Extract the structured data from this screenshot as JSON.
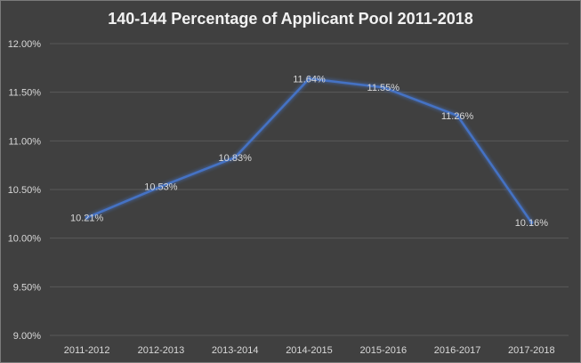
{
  "chart_data": {
    "type": "line",
    "title": "140-144 Percentage of Applicant Pool 2011-2018",
    "categories": [
      "2011-2012",
      "2012-2013",
      "2013-2014",
      "2014-2015",
      "2015-2016",
      "2016-2017",
      "2017-2018"
    ],
    "series": [
      {
        "values": [
          10.21,
          10.53,
          10.83,
          11.64,
          11.55,
          11.26,
          10.16
        ],
        "labels": [
          "10.21%",
          "10.53%",
          "10.83%",
          "11.64%",
          "11.55%",
          "11.26%",
          "10.16%"
        ]
      }
    ],
    "ylim": [
      9.0,
      12.0
    ],
    "yticks": [
      9.0,
      9.5,
      10.0,
      10.5,
      11.0,
      11.5,
      12.0
    ],
    "ytick_labels": [
      "9.00%",
      "9.50%",
      "10.00%",
      "10.50%",
      "11.00%",
      "11.50%",
      "12.00%"
    ],
    "grid": true,
    "legend": "none",
    "colors": {
      "background": "#404040",
      "line": "#4472c4",
      "grid": "#595959",
      "text": "#d9d9d9",
      "title": "#f2f2f2"
    }
  }
}
